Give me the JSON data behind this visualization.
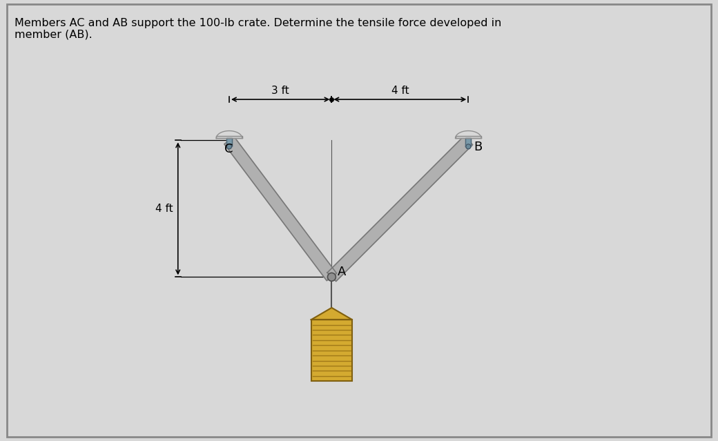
{
  "title": "Members AC and AB support the 100-lb crate. Determine the tensile force developed in\nmember (AB).",
  "title_fontsize": 11.5,
  "bg_color": "#d8d8d8",
  "inner_bg_color": "#e8e8e8",
  "C": [
    0.0,
    0.0
  ],
  "A": [
    3.0,
    -4.0
  ],
  "B": [
    7.0,
    0.0
  ],
  "dim_3ft_label": "3 ft",
  "dim_4ft_horiz_label": "4 ft",
  "dim_4ft_vert_label": "4 ft",
  "member_color": "#b0b0b0",
  "member_edge_color": "#787878",
  "crate_color": "#d4aa30",
  "crate_stripe_color": "#a07818",
  "crate_edge_color": "#806010",
  "label_fontsize": 13,
  "annotation_fontsize": 11,
  "border_color": "#888888",
  "pulley_dome_color": "#d0d0d0",
  "pulley_stem_color": "#7a9aaa",
  "pulley_stem_dark": "#506878"
}
